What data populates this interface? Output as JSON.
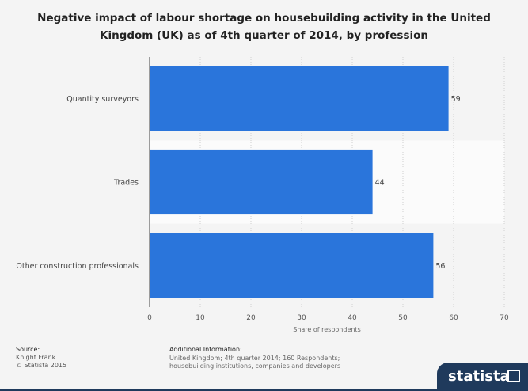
{
  "title": "Negative impact of labour shortage on housebuilding activity in the United Kingdom (UK) as of 4th quarter of 2014, by profession",
  "chart_data": {
    "type": "bar",
    "orientation": "horizontal",
    "categories": [
      "Quantity surveyors",
      "Trades",
      "Other construction professionals"
    ],
    "values": [
      59,
      44,
      56
    ],
    "xlabel": "Share of respondents",
    "ylabel": "",
    "xlim": [
      0,
      70
    ],
    "xticks": [
      0,
      10,
      20,
      30,
      40,
      50,
      60,
      70
    ],
    "grid": "vertical dashed",
    "bar_color": "#2a75db"
  },
  "footer": {
    "source_label": "Source:",
    "source_lines": [
      "Knight Frank",
      "© Statista 2015"
    ],
    "info_label": "Additional Information:",
    "info_text": "United Kingdom; 4th quarter 2014; 160 Respondents; housebuilding institutions, companies and developers"
  },
  "brand": {
    "name": "statista"
  }
}
